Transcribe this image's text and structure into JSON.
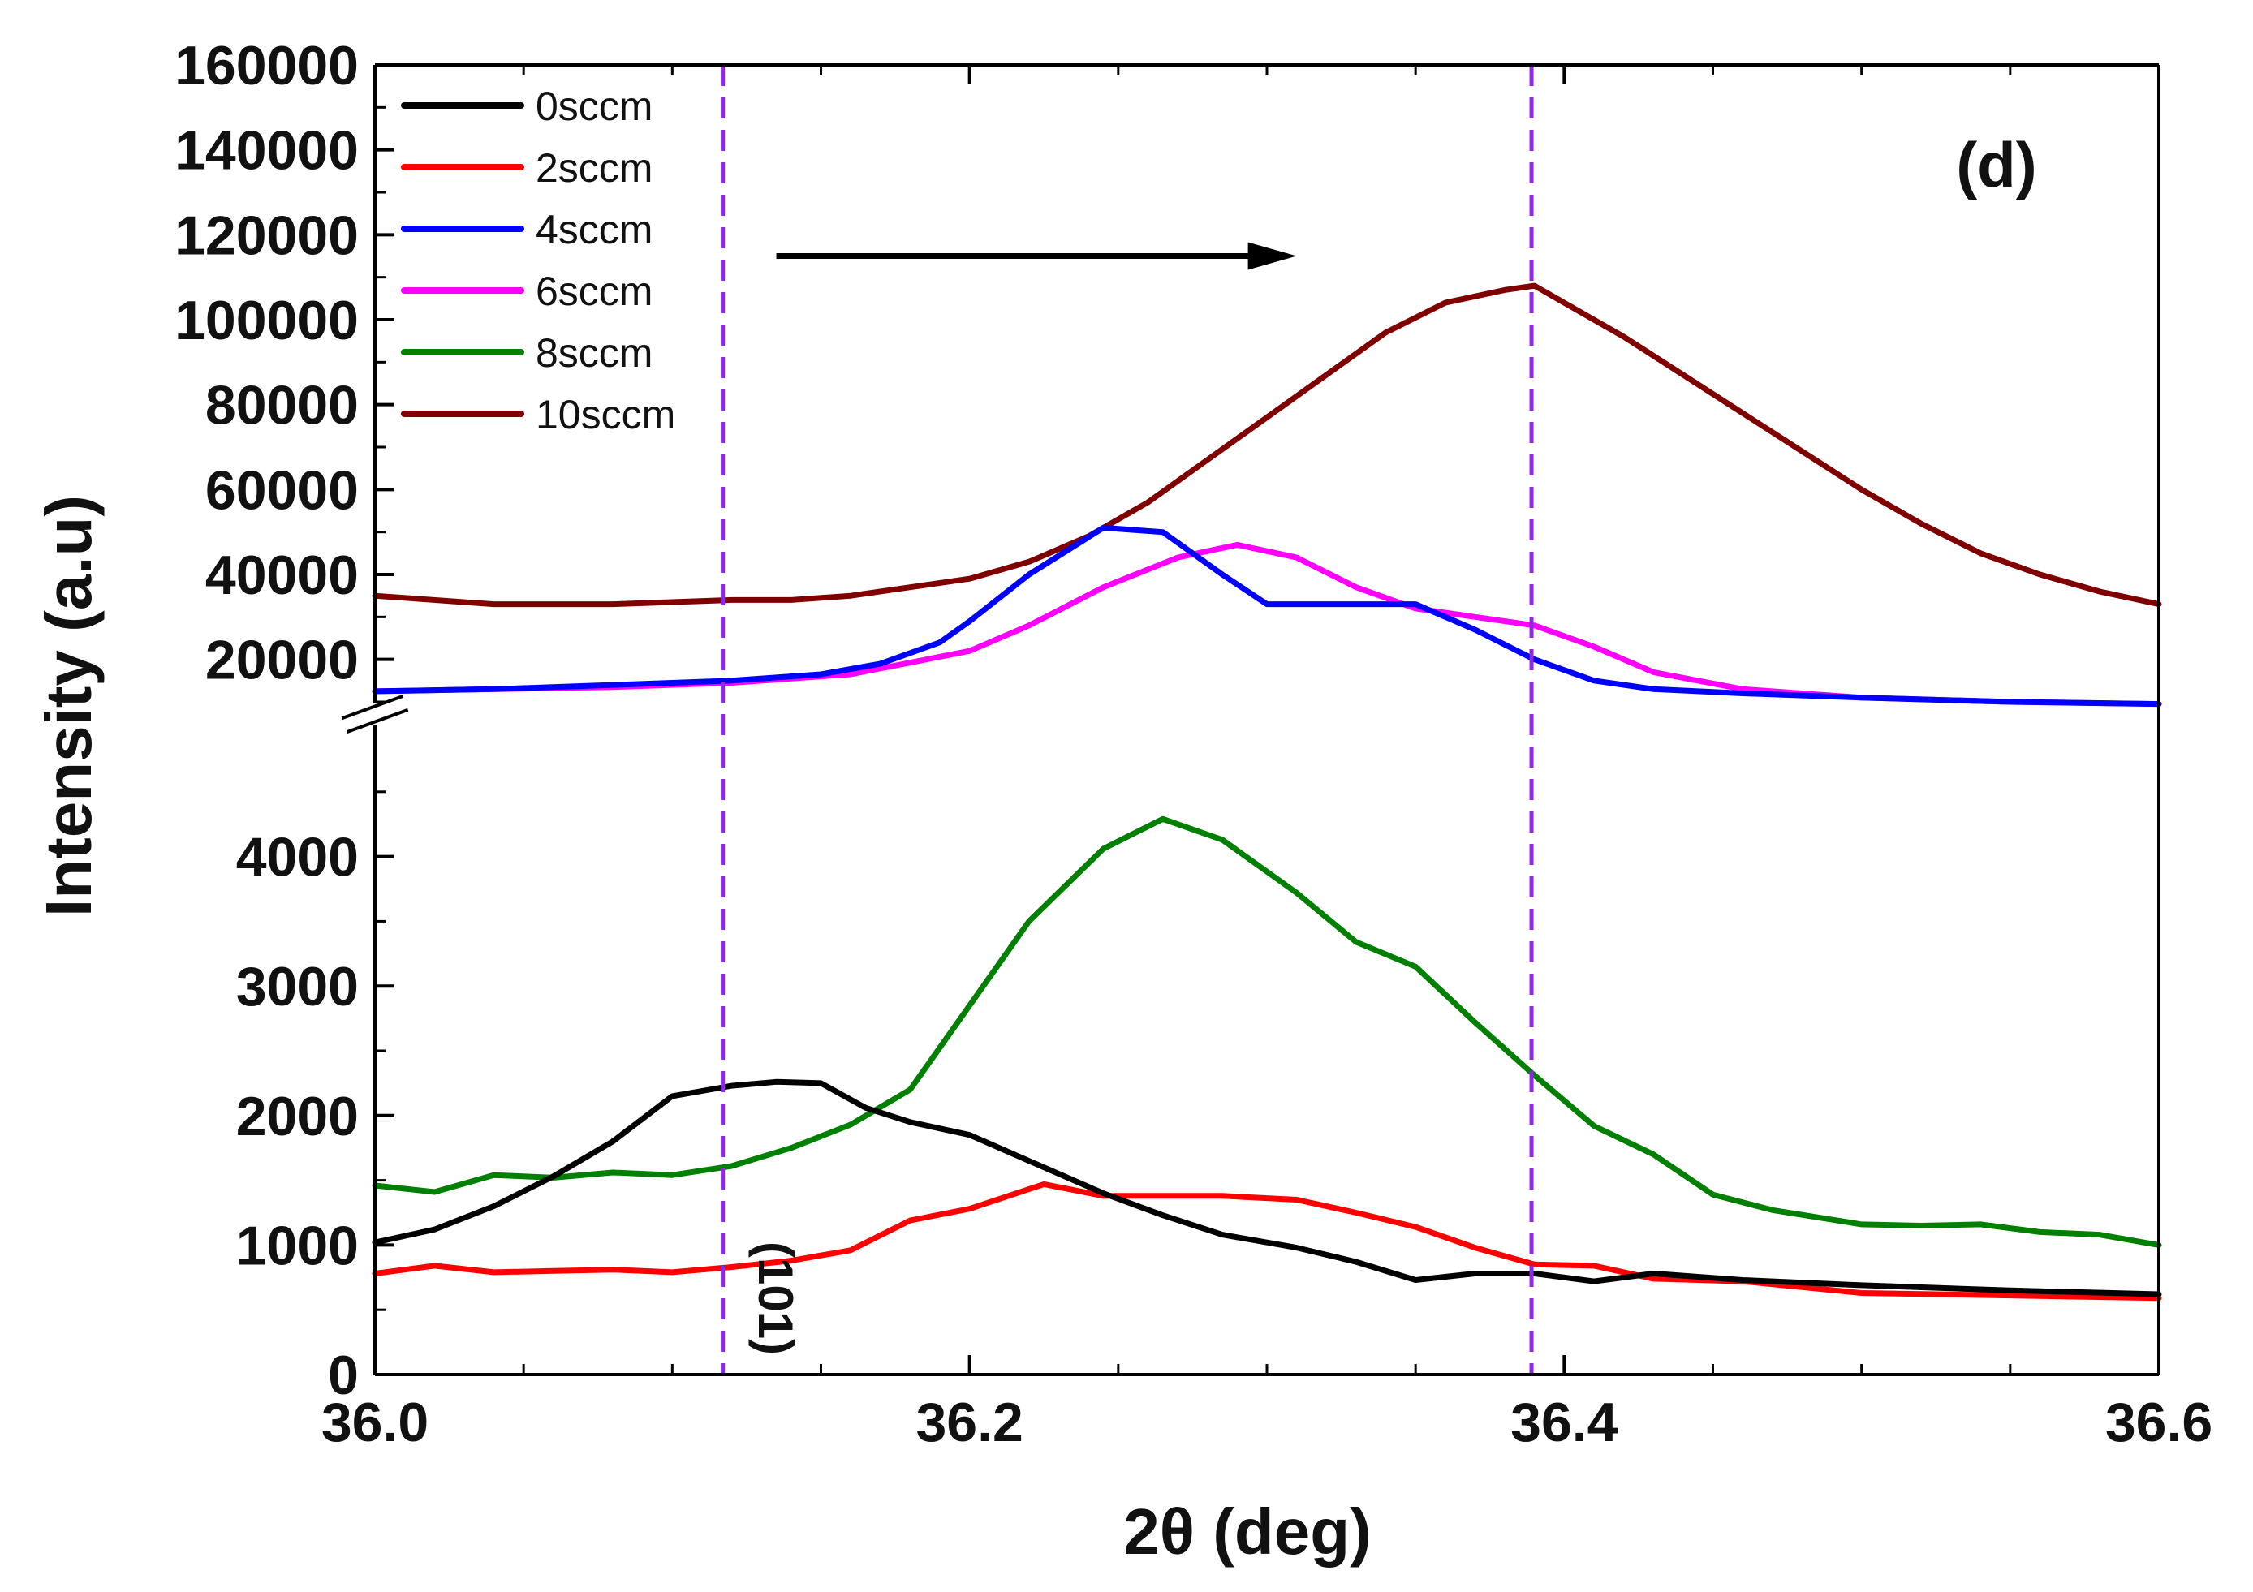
{
  "chart_data": {
    "type": "line",
    "title": "",
    "panel_label": "(d)",
    "xlabel": "2θ (deg)",
    "ylabel": "Intensity (a.u)",
    "xlim": [
      36.0,
      36.6
    ],
    "x_ticks": [
      "36.0",
      "36.2",
      "36.4",
      "36.6"
    ],
    "y_break": true,
    "upper_ylim": [
      10000,
      160000
    ],
    "upper_y_ticks": [
      "160000",
      "140000",
      "120000",
      "100000",
      "80000",
      "60000",
      "40000",
      "20000"
    ],
    "lower_ylim": [
      0,
      5000
    ],
    "lower_y_ticks": [
      "4000",
      "3000",
      "2000",
      "1000",
      "0"
    ],
    "annotation": "(101)",
    "reference_lines_x": [
      36.117,
      36.389
    ],
    "arrow": {
      "from_x": 36.135,
      "to_x": 36.31,
      "y": 115000,
      "direction": "right"
    },
    "legend_position": "top-left",
    "series": [
      {
        "name": "0sccm",
        "color": "#000000",
        "axis": "lower",
        "x": [
          36.0,
          36.02,
          36.04,
          36.06,
          36.08,
          36.1,
          36.12,
          36.135,
          36.15,
          36.165,
          36.18,
          36.2,
          36.22,
          36.245,
          36.265,
          36.285,
          36.31,
          36.33,
          36.35,
          36.37,
          36.39,
          36.41,
          36.43,
          36.46,
          36.5,
          36.55,
          36.6
        ],
        "values": [
          1020,
          1120,
          1300,
          1530,
          1800,
          2150,
          2230,
          2260,
          2250,
          2060,
          1950,
          1850,
          1650,
          1400,
          1230,
          1080,
          980,
          870,
          730,
          780,
          780,
          720,
          780,
          730,
          690,
          650,
          620
        ]
      },
      {
        "name": "2sccm",
        "color": "#ff0000",
        "axis": "lower",
        "x": [
          36.0,
          36.02,
          36.04,
          36.06,
          36.08,
          36.1,
          36.12,
          36.14,
          36.16,
          36.18,
          36.2,
          36.225,
          36.245,
          36.265,
          36.285,
          36.31,
          36.33,
          36.35,
          36.37,
          36.39,
          36.41,
          36.43,
          36.46,
          36.5,
          36.55,
          36.6
        ],
        "values": [
          780,
          840,
          790,
          800,
          810,
          790,
          830,
          880,
          960,
          1190,
          1280,
          1470,
          1380,
          1380,
          1380,
          1350,
          1250,
          1140,
          980,
          850,
          840,
          740,
          720,
          630,
          610,
          590
        ]
      },
      {
        "name": "4sccm",
        "color": "#0000ff",
        "axis": "upper",
        "x": [
          36.0,
          36.04,
          36.08,
          36.12,
          36.15,
          36.17,
          36.19,
          36.2,
          36.22,
          36.245,
          36.265,
          36.285,
          36.3,
          36.33,
          36.35,
          36.37,
          36.39,
          36.41,
          36.43,
          36.46,
          36.5,
          36.55,
          36.6
        ],
        "values": [
          12500,
          13000,
          14000,
          15000,
          16500,
          19000,
          24000,
          29000,
          40000,
          51000,
          50000,
          40000,
          33000,
          33000,
          33000,
          27000,
          20000,
          15000,
          13000,
          12000,
          11000,
          10000,
          9500
        ]
      },
      {
        "name": "6sccm",
        "color": "#ff00ff",
        "axis": "upper",
        "x": [
          36.0,
          36.04,
          36.08,
          36.12,
          36.16,
          36.2,
          36.22,
          36.245,
          36.27,
          36.29,
          36.31,
          36.33,
          36.35,
          36.37,
          36.39,
          36.41,
          36.43,
          36.46,
          36.5,
          36.55,
          36.6
        ],
        "values": [
          12500,
          13000,
          13500,
          14500,
          16500,
          22000,
          28000,
          37000,
          44000,
          47000,
          44000,
          37000,
          32000,
          30000,
          28000,
          23000,
          17000,
          13000,
          11000,
          10000,
          9500
        ]
      },
      {
        "name": "8sccm",
        "color": "#008000",
        "axis": "lower",
        "x": [
          36.0,
          36.02,
          36.04,
          36.06,
          36.08,
          36.1,
          36.12,
          36.14,
          36.16,
          36.18,
          36.2,
          36.22,
          36.245,
          36.265,
          36.285,
          36.31,
          36.33,
          36.35,
          36.37,
          36.39,
          36.41,
          36.43,
          36.45,
          36.47,
          36.5,
          36.52,
          36.54,
          36.56,
          36.58,
          36.6
        ],
        "values": [
          1460,
          1410,
          1540,
          1520,
          1560,
          1540,
          1610,
          1750,
          1930,
          2200,
          2850,
          3500,
          4060,
          4290,
          4130,
          3720,
          3340,
          3150,
          2720,
          2310,
          1920,
          1700,
          1390,
          1270,
          1160,
          1150,
          1160,
          1100,
          1080,
          1000
        ]
      },
      {
        "name": "10sccm",
        "color": "#800000",
        "axis": "upper",
        "x": [
          36.0,
          36.04,
          36.08,
          36.12,
          36.14,
          36.16,
          36.18,
          36.2,
          36.22,
          36.24,
          36.26,
          36.28,
          36.3,
          36.32,
          36.34,
          36.36,
          36.38,
          36.39,
          36.4,
          36.42,
          36.44,
          36.46,
          36.48,
          36.5,
          36.52,
          36.54,
          36.56,
          36.58,
          36.6
        ],
        "values": [
          35000,
          33000,
          33000,
          34000,
          34000,
          35000,
          37000,
          39000,
          43000,
          49000,
          57000,
          67000,
          77000,
          87000,
          97000,
          104000,
          107000,
          108000,
          104000,
          96000,
          87000,
          78000,
          69000,
          60000,
          52000,
          45000,
          40000,
          36000,
          33000
        ]
      }
    ]
  }
}
